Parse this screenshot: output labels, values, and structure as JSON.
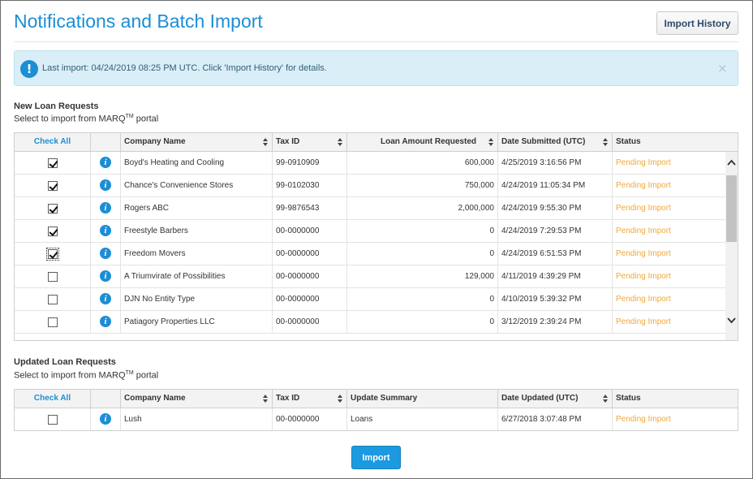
{
  "header": {
    "title": "Notifications and Batch Import",
    "import_history_label": "Import History"
  },
  "alert": {
    "icon": "exclamation-icon",
    "message": "Last import: 04/24/2019 08:25 PM UTC. Click 'Import History' for details.",
    "close": "×"
  },
  "new_requests": {
    "title": "New Loan Requests",
    "subtitle_pre": "Select to import from MARQ",
    "subtitle_sup": "TM",
    "subtitle_post": " portal",
    "columns": {
      "check_all": "Check All",
      "company": "Company Name",
      "tax_id": "Tax ID",
      "amount": "Loan Amount Requested",
      "date": "Date Submitted (UTC)",
      "status": "Status"
    },
    "rows": [
      {
        "checked": true,
        "company": "Boyd's Heating and Cooling",
        "tax_id": "99-0910909",
        "amount": "600,000",
        "date": "4/25/2019 3:16:56 PM",
        "status": "Pending Import"
      },
      {
        "checked": true,
        "company": "Chance's Convenience Stores",
        "tax_id": "99-0102030",
        "amount": "750,000",
        "date": "4/24/2019 11:05:34 PM",
        "status": "Pending Import"
      },
      {
        "checked": true,
        "company": "Rogers ABC",
        "tax_id": "99-9876543",
        "amount": "2,000,000",
        "date": "4/24/2019 9:55:30 PM",
        "status": "Pending Import"
      },
      {
        "checked": true,
        "company": "Freestyle Barbers",
        "tax_id": "00-0000000",
        "amount": "0",
        "date": "4/24/2019 7:29:53 PM",
        "status": "Pending Import"
      },
      {
        "checked": true,
        "focused": true,
        "company": "Freedom Movers",
        "tax_id": "00-0000000",
        "amount": "0",
        "date": "4/24/2019 6:51:53 PM",
        "status": "Pending Import"
      },
      {
        "checked": false,
        "company": "A Triumvirate of Possibilities",
        "tax_id": "00-0000000",
        "amount": "129,000",
        "date": "4/11/2019 4:39:29 PM",
        "status": "Pending Import"
      },
      {
        "checked": false,
        "company": "DJN No Entity Type",
        "tax_id": "00-0000000",
        "amount": "0",
        "date": "4/10/2019 5:39:32 PM",
        "status": "Pending Import"
      },
      {
        "checked": false,
        "company": "Patiagory Properties LLC",
        "tax_id": "00-0000000",
        "amount": "0",
        "date": "3/12/2019 2:39:24 PM",
        "status": "Pending Import"
      }
    ]
  },
  "updated_requests": {
    "title": "Updated Loan Requests",
    "subtitle_pre": "Select to import from MARQ",
    "subtitle_sup": "TM",
    "subtitle_post": " portal",
    "columns": {
      "check_all": "Check All",
      "company": "Company Name",
      "tax_id": "Tax ID",
      "summary": "Update Summary",
      "date": "Date Updated (UTC)",
      "status": "Status"
    },
    "rows": [
      {
        "checked": false,
        "company": "Lush",
        "tax_id": "00-0000000",
        "summary": "Loans",
        "date": "6/27/2018 3:07:48 PM",
        "status": "Pending Import"
      }
    ]
  },
  "footer": {
    "import_label": "Import"
  },
  "colors": {
    "accent": "#1c8ed6",
    "status_pending": "#f0a83a",
    "alert_bg": "#daeef7"
  }
}
